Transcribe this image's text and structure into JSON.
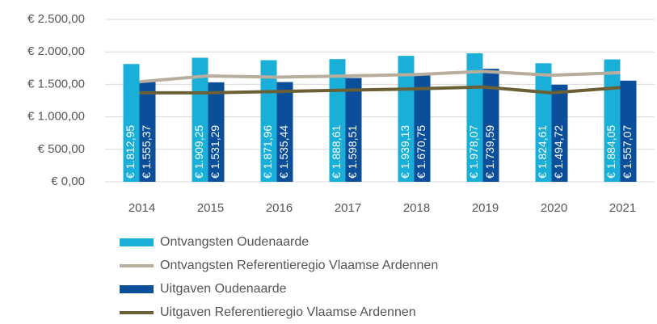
{
  "chart_data": {
    "type": "bar",
    "categories": [
      "2014",
      "2015",
      "2016",
      "2017",
      "2018",
      "2019",
      "2020",
      "2021"
    ],
    "series": [
      {
        "name": "Ontvangsten Oudenaarde",
        "type": "bar",
        "color": "#1aafd9",
        "values": [
          1812.95,
          1909.25,
          1871.96,
          1888.61,
          1939.13,
          1978.07,
          1824.61,
          1884.05
        ],
        "value_labels": [
          "€ 1.812,95",
          "€ 1.909,25",
          "€ 1.871,96",
          "€ 1.888,61",
          "€ 1.939,13",
          "€ 1.978,07",
          "€ 1.824,61",
          "€ 1.884,05"
        ]
      },
      {
        "name": "Ontvangsten Referentieregio Vlaamse Ardennen",
        "type": "line",
        "color": "#b9ae9e",
        "values": [
          1540,
          1630,
          1610,
          1630,
          1650,
          1700,
          1640,
          1680
        ]
      },
      {
        "name": "Uitgaven Oudenaarde",
        "type": "bar",
        "color": "#0b4f9b",
        "values": [
          1555.37,
          1531.29,
          1535.44,
          1598.51,
          1670.75,
          1739.59,
          1494.72,
          1557.07
        ],
        "value_labels": [
          "€ 1.555,37",
          "€ 1.531,29",
          "€ 1.535,44",
          "€ 1.598,51",
          "€ 1.670,75",
          "€ 1.739,59",
          "€ 1.494,72",
          "€ 1.557,07"
        ]
      },
      {
        "name": "Uitgaven Referentieregio Vlaamse Ardennen",
        "type": "line",
        "color": "#6b5f36",
        "values": [
          1370,
          1370,
          1390,
          1410,
          1430,
          1460,
          1370,
          1450
        ]
      }
    ],
    "ylim": [
      0,
      2500
    ],
    "yticks": [
      {
        "value": 0,
        "label": "€ 0,00"
      },
      {
        "value": 500,
        "label": "€ 500,00"
      },
      {
        "value": 1000,
        "label": "€ 1.000,00"
      },
      {
        "value": 1500,
        "label": "€ 1.500,00"
      },
      {
        "value": 2000,
        "label": "€ 2.000,00"
      },
      {
        "value": 2500,
        "label": "€ 2.500,00"
      }
    ],
    "grid": true
  }
}
